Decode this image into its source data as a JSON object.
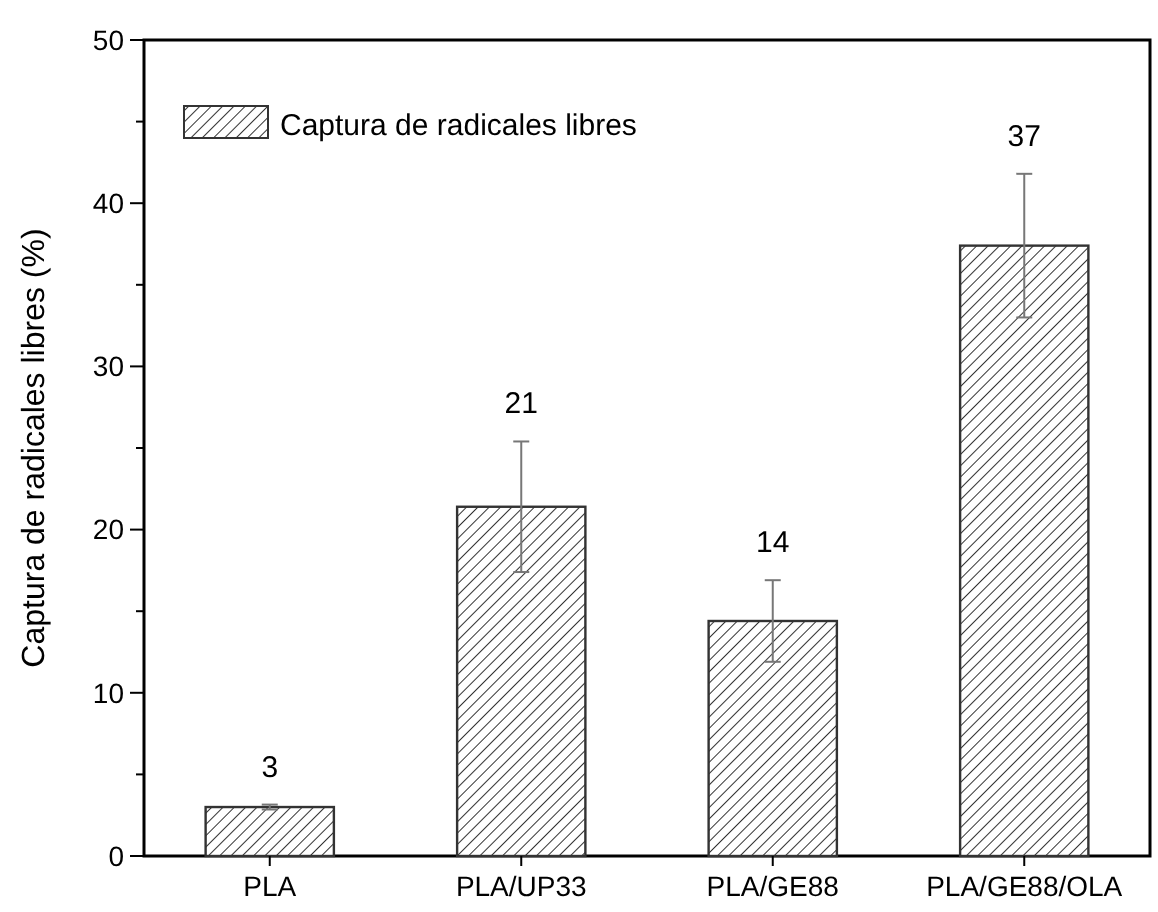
{
  "chart_data": {
    "type": "bar",
    "ylabel": "Captura de radicales libres (%)",
    "categories": [
      "PLA",
      "PLA/UP33",
      "PLA/GE88",
      "PLA/GE88/OLA"
    ],
    "series": [
      {
        "name": "Captura de radicales libres",
        "color": "#333333",
        "values": [
          3.0,
          21.4,
          14.4,
          37.4
        ],
        "errors": [
          0.15,
          4,
          2.5,
          4.4
        ],
        "value_labels": [
          "3",
          "21",
          "14",
          "37"
        ]
      }
    ],
    "ylim": [
      0,
      50
    ],
    "yticks": [
      0,
      {
        "value": 5,
        "label": null
      },
      10,
      {
        "value": 15,
        "label": null
      },
      20,
      {
        "value": 25,
        "label": null
      },
      30,
      {
        "value": 35,
        "label": null
      },
      40,
      {
        "value": 45,
        "label": null
      },
      50
    ],
    "legend": "top left"
  }
}
